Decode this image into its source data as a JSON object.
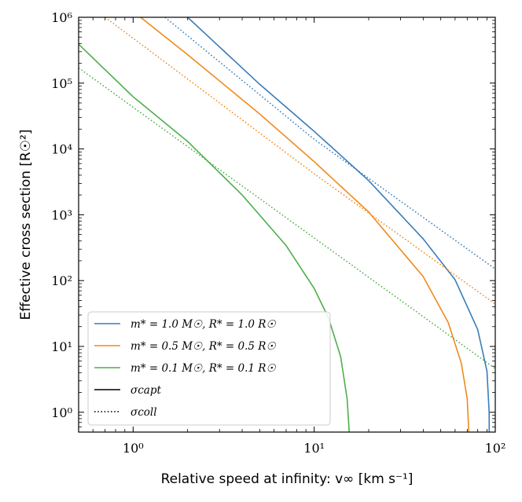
{
  "chart_data": {
    "type": "line",
    "title": "",
    "xlabel": "Relative speed at infinity: v∞ [km s⁻¹]",
    "ylabel": "Effective cross section [R☉²]",
    "xscale": "log",
    "yscale": "log",
    "xlim": [
      0.5,
      100
    ],
    "ylim": [
      0.5,
      1000000
    ],
    "x_ticks": [
      {
        "value": 1,
        "label": "10⁰"
      },
      {
        "value": 10,
        "label": "10¹"
      },
      {
        "value": 100,
        "label": "10²"
      }
    ],
    "y_ticks": [
      {
        "value": 1,
        "label": "10⁰"
      },
      {
        "value": 10,
        "label": "10¹"
      },
      {
        "value": 100,
        "label": "10²"
      },
      {
        "value": 1000,
        "label": "10³"
      },
      {
        "value": 10000,
        "label": "10⁴"
      },
      {
        "value": 100000,
        "label": "10⁵"
      },
      {
        "value": 1000000,
        "label": "10⁶"
      }
    ],
    "legend_position": "bottom-left",
    "series": [
      {
        "name": "m* = 1.0 M☉, R* = 1.0 R☉",
        "kind": "sigma_capt",
        "style": "solid",
        "color": "#3b7cb8",
        "x": [
          2.0,
          5,
          10,
          20,
          40,
          60,
          80,
          90,
          92.5,
          92.6
        ],
        "y": [
          1000000,
          96000,
          18500,
          3300,
          430,
          103,
          18,
          4.2,
          1.0,
          0.5
        ]
      },
      {
        "name": "m* = 1.0 M☉, R* = 1.0 R☉",
        "kind": "sigma_coll",
        "style": "dotted",
        "color": "#3b7cb8",
        "x": [
          1.5,
          10,
          100
        ],
        "y": [
          1000000,
          14000,
          150
        ]
      },
      {
        "name": "m* = 0.5 M☉, R* = 0.5 R☉",
        "kind": "sigma_capt",
        "style": "solid",
        "color": "#f08a1c",
        "x": [
          1.1,
          2,
          5,
          10,
          20,
          40,
          55,
          65,
          70,
          71.2,
          71.3
        ],
        "y": [
          1000000,
          270000,
          34000,
          6400,
          1100,
          115,
          23,
          5.5,
          1.6,
          0.6,
          0.5
        ]
      },
      {
        "name": "m* = 0.5 M☉, R* = 0.5 R☉",
        "kind": "sigma_coll",
        "style": "dotted",
        "color": "#f08a1c",
        "x": [
          0.7,
          10,
          100
        ],
        "y": [
          1000000,
          4200,
          44
        ]
      },
      {
        "name": "m* = 0.1 M☉, R* = 0.1 R☉",
        "kind": "sigma_capt",
        "style": "solid",
        "color": "#4daf4a",
        "x": [
          0.5,
          1,
          2,
          4,
          7,
          10,
          12,
          14,
          15.2,
          15.55,
          15.6
        ],
        "y": [
          390000,
          62000,
          13000,
          2000,
          340,
          76,
          27,
          7,
          1.6,
          0.6,
          0.5
        ]
      },
      {
        "name": "m* = 0.1 M☉, R* = 0.1 R☉",
        "kind": "sigma_coll",
        "style": "dotted",
        "color": "#4daf4a",
        "x": [
          0.5,
          100
        ],
        "y": [
          170000,
          4.6
        ]
      }
    ],
    "legend": [
      {
        "label": "m* = 1.0 M☉, R* = 1.0 R☉",
        "style": "solid",
        "color": "#3b7cb8"
      },
      {
        "label": "m* = 0.5 M☉, R* = 0.5 R☉",
        "style": "solid",
        "color": "#f08a1c"
      },
      {
        "label": "m* = 0.1 M☉, R* = 0.1 R☉",
        "style": "solid",
        "color": "#4daf4a"
      },
      {
        "label": "σcapt",
        "style": "solid",
        "color": "#000000"
      },
      {
        "label": "σcoll",
        "style": "dotted",
        "color": "#000000"
      }
    ]
  }
}
